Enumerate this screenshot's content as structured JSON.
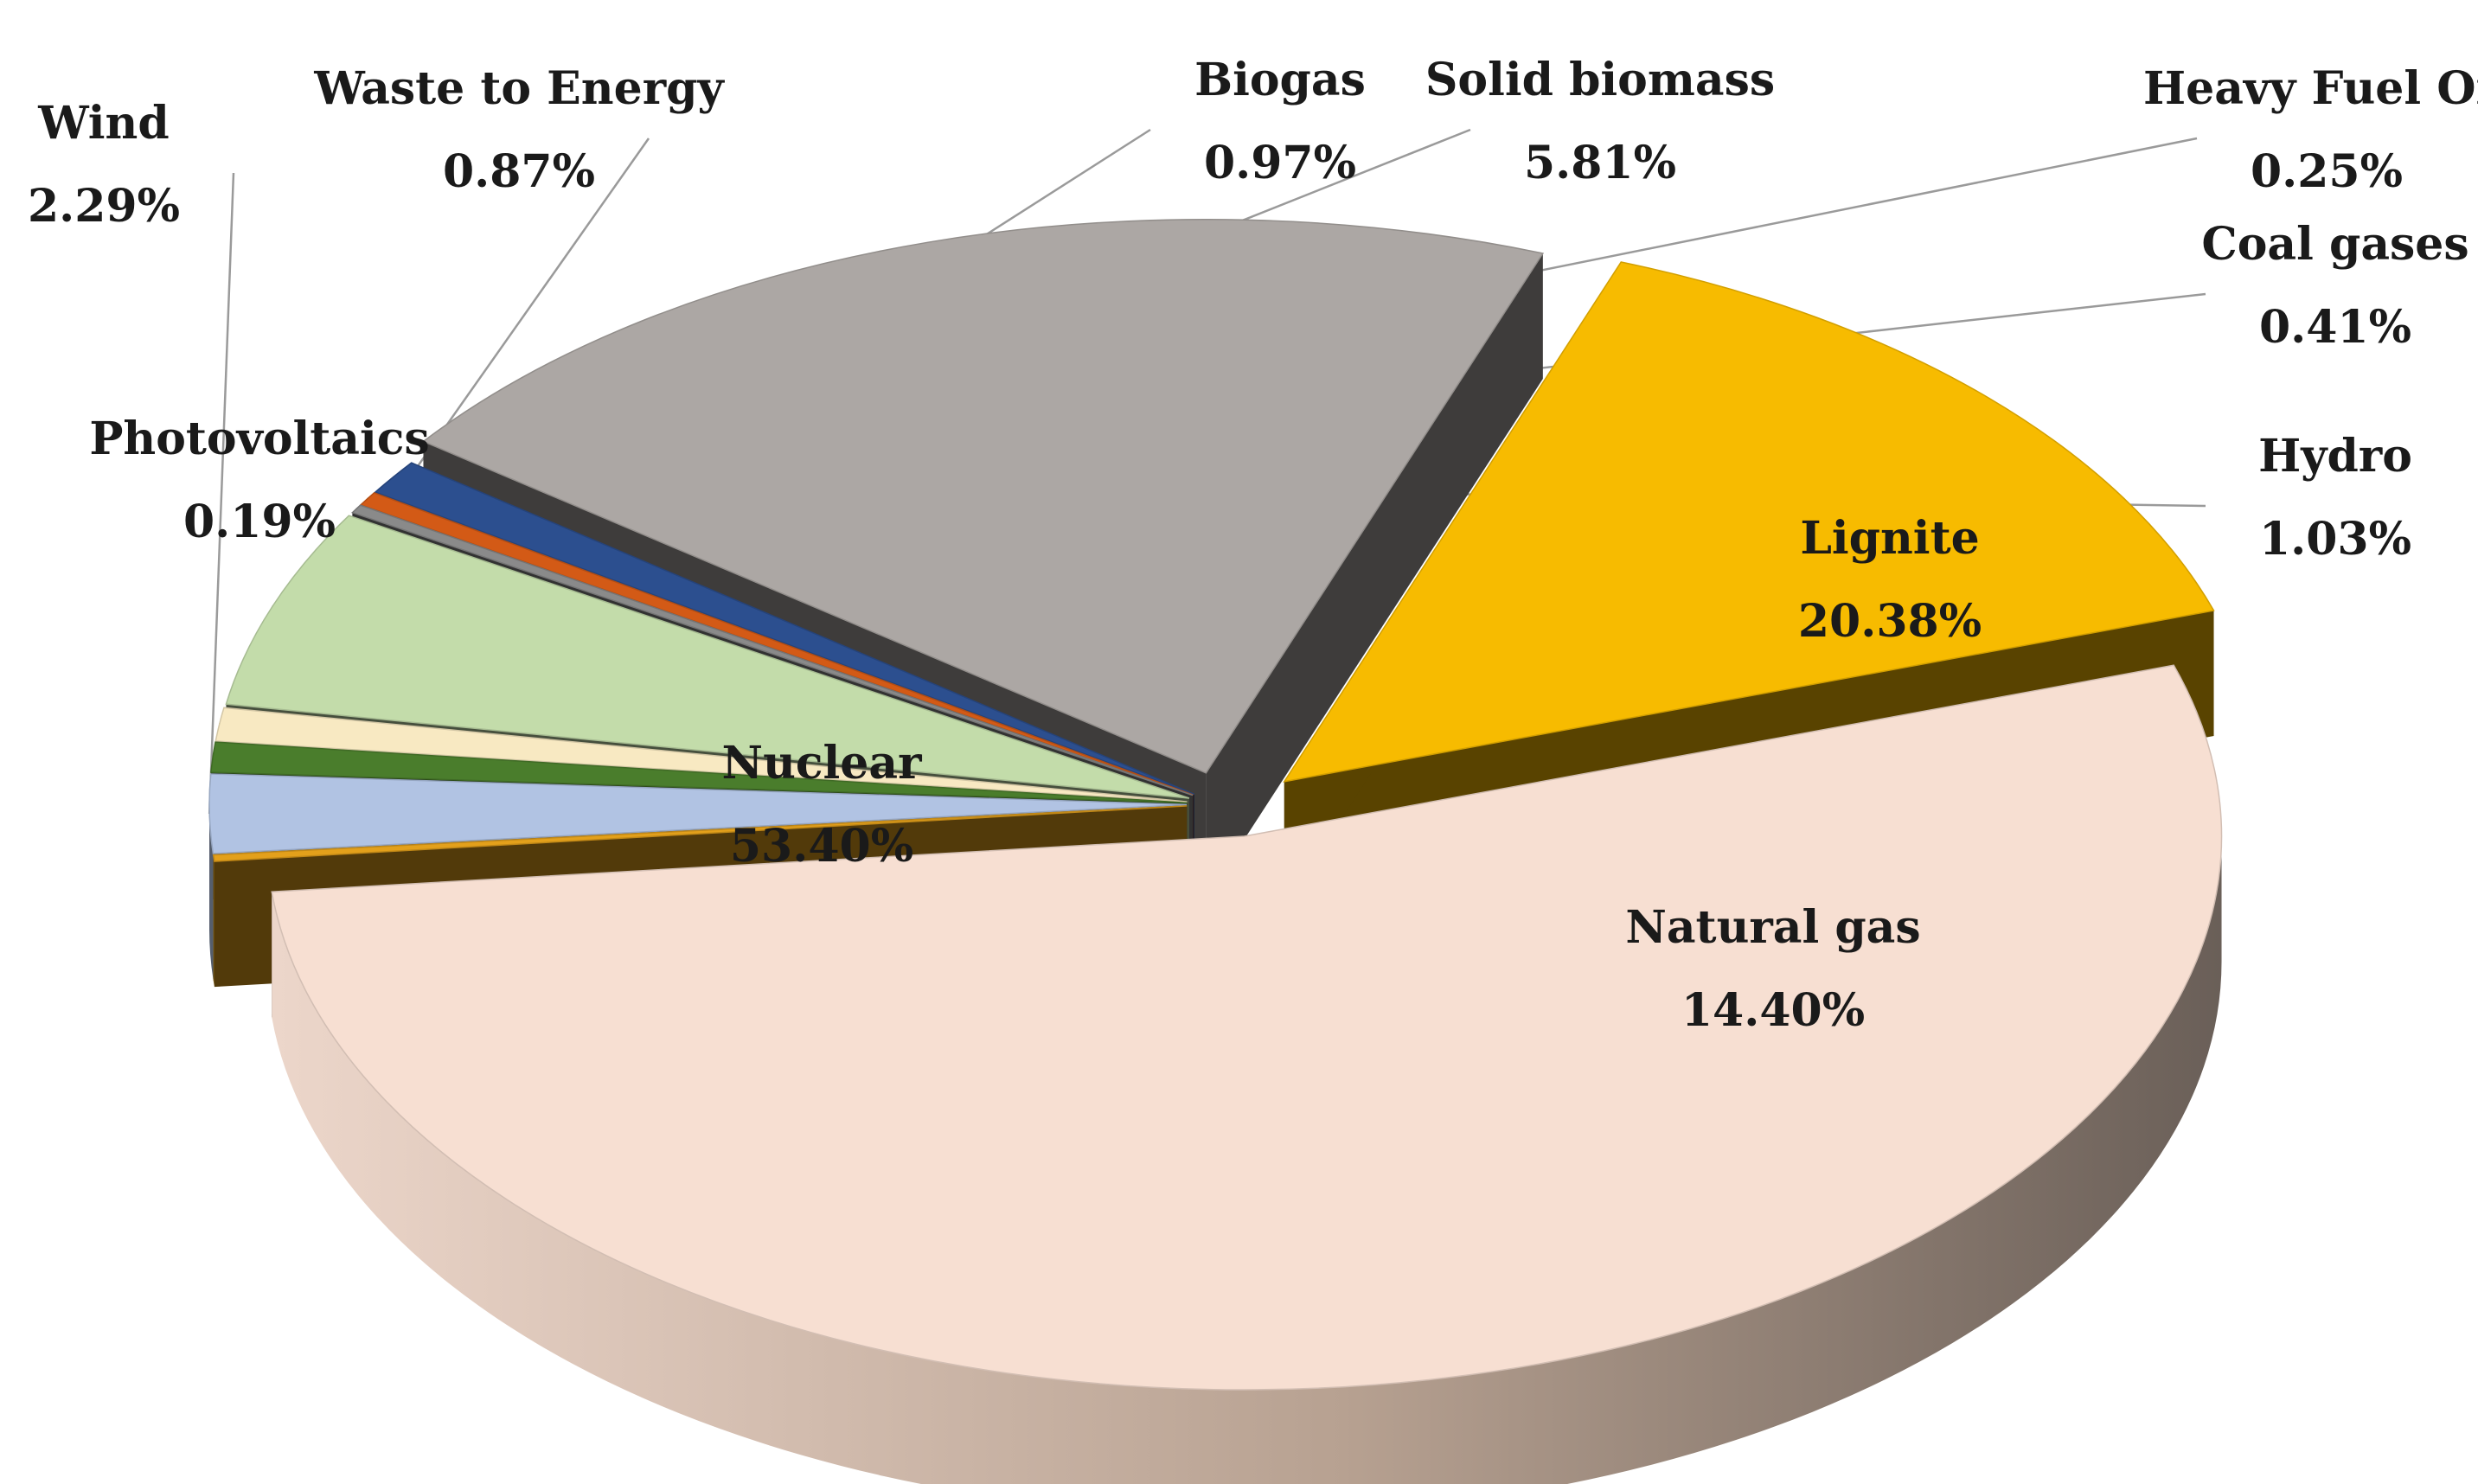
{
  "chart_data": {
    "type": "pie",
    "title": "",
    "style": "3d-exploded",
    "legend": "none",
    "slices": [
      {
        "name": "Nuclear",
        "value": 53.4,
        "label": "53.40%",
        "color": "#f7dfd2"
      },
      {
        "name": "Photovoltaics",
        "value": 0.19,
        "label": "0.19%",
        "color": "#e3a01b"
      },
      {
        "name": "Wind",
        "value": 2.29,
        "label": "2.29%",
        "color": "#b1c3e3"
      },
      {
        "name": "Waste to Energy",
        "value": 0.87,
        "label": "0.87%",
        "color": "#4a7d2c"
      },
      {
        "name": "Biogas",
        "value": 0.97,
        "label": "0.97%",
        "color": "#f8e9c2"
      },
      {
        "name": "Solid biomass",
        "value": 5.81,
        "label": "5.81%",
        "color": "#c3dcaa"
      },
      {
        "name": "Heavy Fuel Oil",
        "value": 0.25,
        "label": "0.25%",
        "color": "#8a8a8a"
      },
      {
        "name": "Coal gases",
        "value": 0.41,
        "label": "0.41%",
        "color": "#d35a16"
      },
      {
        "name": "Hydro",
        "value": 1.03,
        "label": "1.03%",
        "color": "#2c4f8f"
      },
      {
        "name": "Lignite",
        "value": 20.38,
        "label": "20.38%",
        "color": "#aca7a4"
      },
      {
        "name": "Natural gas",
        "value": 14.4,
        "label": "14.40%",
        "color": "#f7bb00"
      }
    ]
  }
}
